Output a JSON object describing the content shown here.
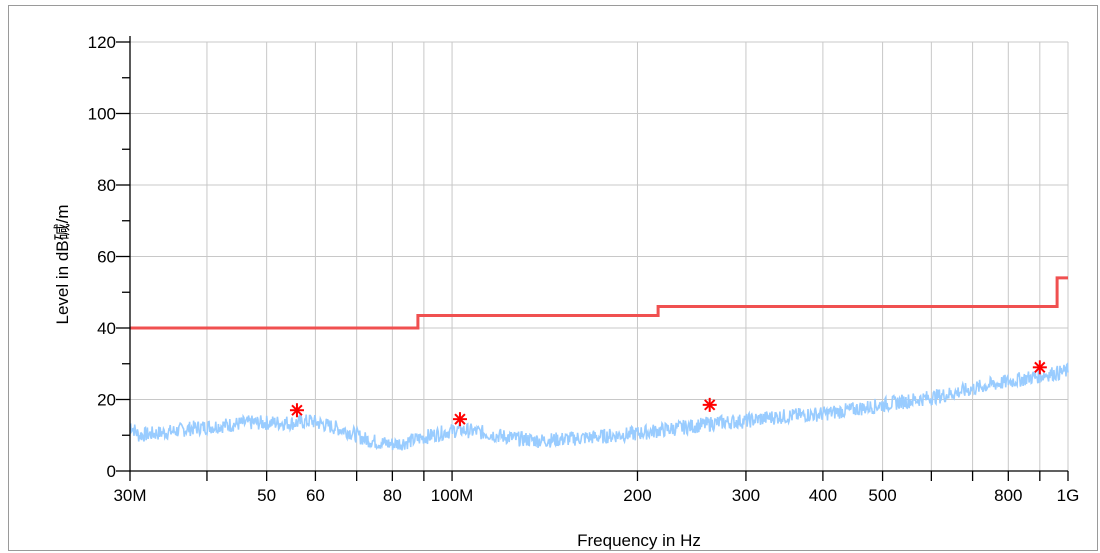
{
  "chart_data": {
    "type": "line",
    "xlabel": "Frequency in Hz",
    "ylabel": "Level in dB碱/m",
    "x_scale": "log",
    "xlim": [
      30000000,
      1000000000
    ],
    "ylim": [
      0,
      120
    ],
    "grid": true,
    "x_ticks": [
      {
        "value": 30000000,
        "label": "30M"
      },
      {
        "value": 50000000,
        "label": "50"
      },
      {
        "value": 60000000,
        "label": "60"
      },
      {
        "value": 80000000,
        "label": "80"
      },
      {
        "value": 100000000,
        "label": "100M"
      },
      {
        "value": 200000000,
        "label": "200"
      },
      {
        "value": 300000000,
        "label": "300"
      },
      {
        "value": 400000000,
        "label": "400"
      },
      {
        "value": 500000000,
        "label": "500"
      },
      {
        "value": 800000000,
        "label": "800"
      },
      {
        "value": 1000000000,
        "label": "1G"
      }
    ],
    "x_minor_ticks": [
      40000000,
      70000000,
      90000000,
      600000000,
      700000000,
      900000000
    ],
    "y_ticks": [
      {
        "value": 0,
        "label": "0"
      },
      {
        "value": 20,
        "label": "20"
      },
      {
        "value": 40,
        "label": "40"
      },
      {
        "value": 60,
        "label": "60"
      },
      {
        "value": 80,
        "label": "80"
      },
      {
        "value": 100,
        "label": "100"
      },
      {
        "value": 120,
        "label": "120"
      }
    ],
    "series": [
      {
        "color": "#99ccff",
        "x": [
          30000000,
          31000000,
          33000000,
          35000000,
          38000000,
          41000000,
          44000000,
          47000000,
          50000000,
          53000000,
          56000000,
          59000000,
          62000000,
          65000000,
          68000000,
          72000000,
          76000000,
          80000000,
          84000000,
          88000000,
          93000000,
          98000000,
          103000000,
          110000000,
          118000000,
          128000000,
          140000000,
          155000000,
          170000000,
          185000000,
          200000000,
          220000000,
          245000000,
          270000000,
          300000000,
          330000000,
          360000000,
          400000000,
          440000000,
          480000000,
          520000000,
          570000000,
          620000000,
          680000000,
          740000000,
          800000000,
          860000000,
          920000000,
          970000000,
          1000000000
        ],
        "values": [
          13,
          10,
          10.5,
          11,
          12,
          12.5,
          13,
          13.5,
          13.5,
          13.5,
          13.5,
          14,
          13,
          12,
          11,
          9,
          8,
          7.5,
          8,
          9,
          10,
          11,
          11.5,
          11,
          10,
          9,
          8.5,
          9,
          9.5,
          10,
          10.5,
          11.5,
          12.5,
          13.5,
          14,
          15,
          15.5,
          16,
          17,
          18,
          19,
          20,
          21,
          22.5,
          24,
          25,
          26,
          27,
          27.5,
          28
        ]
      },
      {
        "color": "#f05050",
        "x": [
          30000000,
          88000000,
          88000000,
          216000000,
          216000000,
          960000000,
          960000000,
          1000000000
        ],
        "values": [
          40,
          40,
          43.5,
          43.5,
          46,
          46,
          54,
          54
        ]
      }
    ],
    "markers": {
      "color": "#ff0000",
      "symbol": "asterisk",
      "x": [
        56000000,
        103000000,
        262000000,
        900000000
      ],
      "values": [
        17,
        14.5,
        18.5,
        29
      ]
    }
  }
}
